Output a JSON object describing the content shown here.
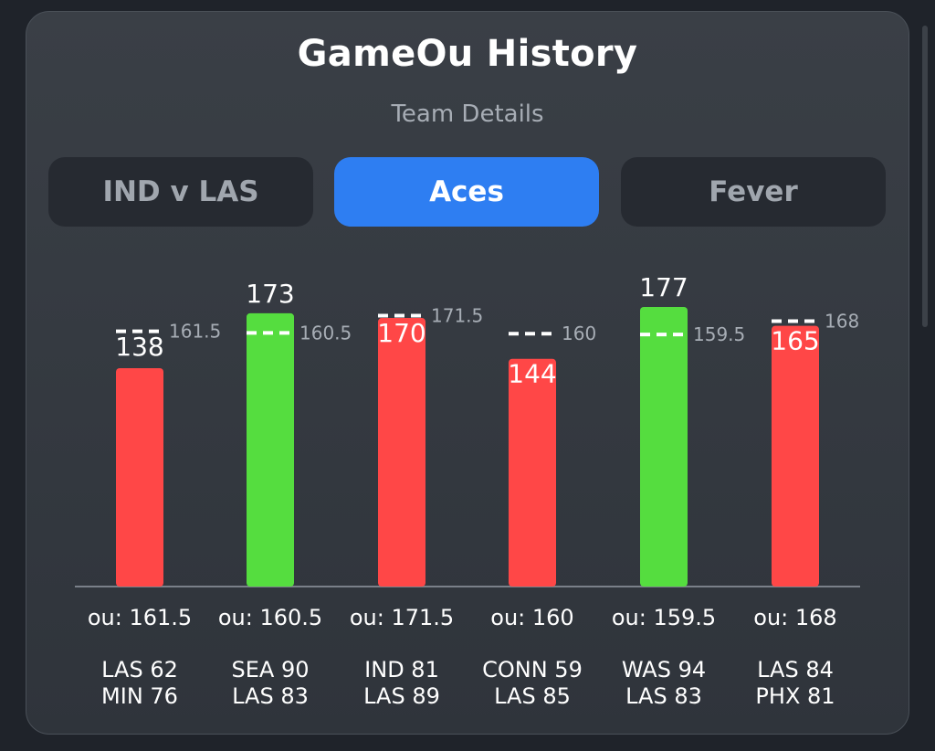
{
  "header": {
    "title": "GameOu History",
    "subtitle": "Team Details"
  },
  "tabs": [
    {
      "label": "IND v LAS",
      "active": false
    },
    {
      "label": "Aces",
      "active": true
    },
    {
      "label": "Fever",
      "active": false
    }
  ],
  "colors": {
    "over": "#55dd3f",
    "under": "#ff4747",
    "line": "#ffffff",
    "axis": "#7a8089"
  },
  "chart_data": {
    "type": "bar",
    "title": "",
    "xlabel": "",
    "ylabel": "",
    "ylim": [
      0,
      185
    ],
    "categories": [
      "LAS 62 MIN 76",
      "SEA 90 LAS 83",
      "IND 81 LAS 89",
      "CONN 59 LAS 85",
      "WAS 94 LAS 83",
      "LAS 84 PHX 81"
    ],
    "games": [
      {
        "total": 138,
        "line": 161.5,
        "line_label": "161.5",
        "ou_label": "ou: 161.5",
        "team1": "LAS 62",
        "team2": "MIN 76",
        "result": "under"
      },
      {
        "total": 173,
        "line": 160.5,
        "line_label": "160.5",
        "ou_label": "ou: 160.5",
        "team1": "SEA 90",
        "team2": "LAS 83",
        "result": "over"
      },
      {
        "total": 170,
        "line": 171.5,
        "line_label": "171.5",
        "ou_label": "ou: 171.5",
        "team1": "IND 81",
        "team2": "LAS 89",
        "result": "under"
      },
      {
        "total": 144,
        "line": 160,
        "line_label": "160",
        "ou_label": "ou: 160",
        "team1": "CONN 59",
        "team2": "LAS 85",
        "result": "under"
      },
      {
        "total": 177,
        "line": 159.5,
        "line_label": "159.5",
        "ou_label": "ou: 159.5",
        "team1": "WAS 94",
        "team2": "LAS 83",
        "result": "over"
      },
      {
        "total": 165,
        "line": 168,
        "line_label": "168",
        "ou_label": "ou: 168",
        "team1": "LAS 84",
        "team2": "PHX 81",
        "result": "under"
      }
    ]
  }
}
